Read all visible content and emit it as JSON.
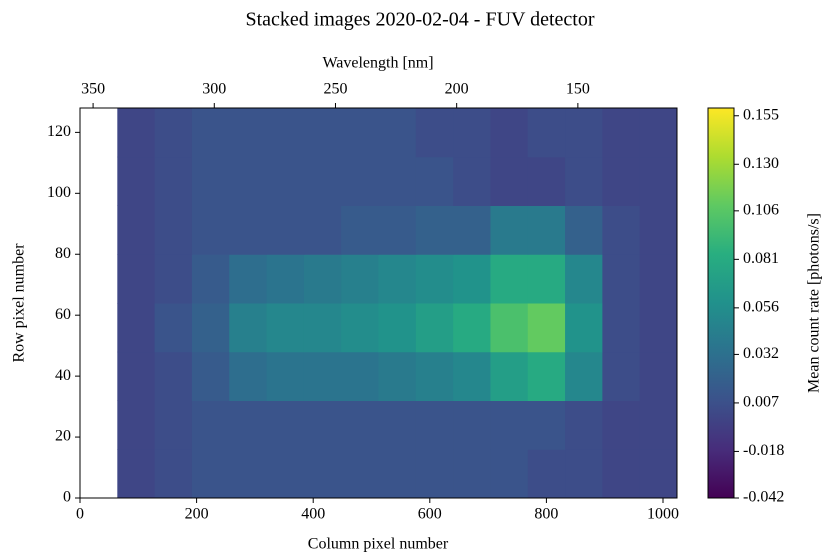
{
  "chart_data": {
    "type": "heatmap",
    "title": "Stacked images 2020-02-04 - FUV detector",
    "x_label": "Column pixel number",
    "y_label": "Row pixel number",
    "x2_label": "Wavelength [nm]",
    "colorbar_label": "Mean count rate [photons/s]",
    "colormap": "viridis",
    "xlim": [
      0,
      1024
    ],
    "ylim": [
      0,
      128
    ],
    "x2lim": [
      355.4,
      109.1
    ],
    "clim": [
      -0.042,
      0.159
    ],
    "xticks": [
      0,
      200,
      400,
      600,
      800,
      1000
    ],
    "yticks": [
      0,
      20,
      40,
      60,
      80,
      100,
      120
    ],
    "x2ticks": [
      350,
      300,
      250,
      200,
      150
    ],
    "cticks": [
      -0.042,
      -0.018,
      0.007,
      0.032,
      0.056,
      0.081,
      0.106,
      {
        "value": 0.13,
        "label": "0.130"
      },
      0.155
    ],
    "xbins": [
      0,
      64,
      128,
      192,
      256,
      320,
      384,
      448,
      512,
      576,
      640,
      704,
      768,
      832,
      896,
      960,
      1024
    ],
    "ybins": [
      0,
      16,
      32,
      48,
      64,
      80,
      96,
      112,
      128
    ],
    "z": [
      [
        null,
        0.0,
        0.005,
        0.01,
        0.01,
        0.01,
        0.01,
        0.01,
        0.01,
        0.01,
        0.01,
        0.01,
        0.005,
        0.005,
        0.0,
        0.0
      ],
      [
        null,
        0.0,
        0.005,
        0.01,
        0.01,
        0.01,
        0.01,
        0.01,
        0.01,
        0.01,
        0.01,
        0.01,
        0.01,
        0.005,
        0.0,
        0.0
      ],
      [
        null,
        0.0,
        0.005,
        0.015,
        0.03,
        0.035,
        0.035,
        0.035,
        0.04,
        0.045,
        0.05,
        0.07,
        0.08,
        0.05,
        0.005,
        0.0
      ],
      [
        null,
        0.0,
        0.01,
        0.02,
        0.045,
        0.05,
        0.05,
        0.055,
        0.06,
        0.07,
        0.08,
        0.1,
        0.11,
        0.06,
        0.005,
        0.0
      ],
      [
        null,
        0.0,
        0.005,
        0.015,
        0.03,
        0.035,
        0.04,
        0.045,
        0.05,
        0.055,
        0.06,
        0.08,
        0.08,
        0.05,
        0.005,
        0.0
      ],
      [
        null,
        0.0,
        0.005,
        0.01,
        0.01,
        0.01,
        0.01,
        0.015,
        0.015,
        0.02,
        0.02,
        0.04,
        0.04,
        0.02,
        0.005,
        0.0
      ],
      [
        null,
        0.0,
        0.005,
        0.01,
        0.01,
        0.01,
        0.01,
        0.01,
        0.01,
        0.01,
        0.005,
        0.0,
        0.0,
        0.005,
        0.0,
        0.0
      ],
      [
        null,
        0.0,
        0.005,
        0.01,
        0.01,
        0.01,
        0.01,
        0.01,
        0.01,
        0.005,
        0.005,
        0.0,
        0.005,
        0.005,
        0.0,
        0.0
      ]
    ]
  }
}
